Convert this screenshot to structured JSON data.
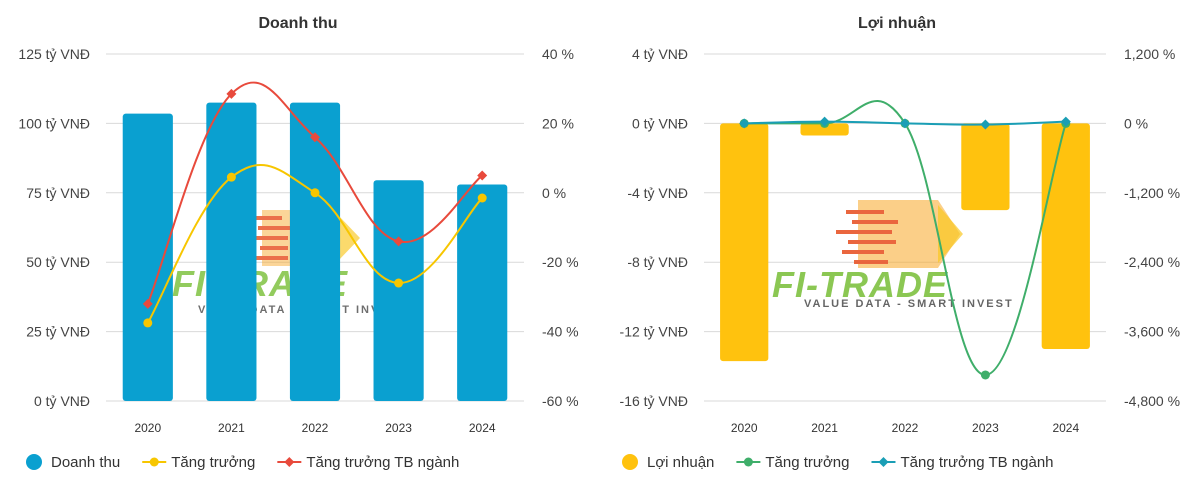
{
  "chart_data": [
    {
      "type": "bar+line",
      "title": "Doanh thu",
      "categories": [
        "2020",
        "2021",
        "2022",
        "2023",
        "2024"
      ],
      "left_axis": {
        "ylim": [
          0,
          125
        ],
        "ticks": [
          0,
          25,
          50,
          75,
          100,
          125
        ],
        "tick_labels": [
          "0 tỷ VNĐ",
          "25 tỷ VNĐ",
          "50 tỷ VNĐ",
          "75 tỷ VNĐ",
          "100 tỷ VNĐ",
          "125 tỷ VNĐ"
        ]
      },
      "right_axis": {
        "ylim": [
          -60,
          40
        ],
        "ticks": [
          -60,
          -40,
          -20,
          0,
          20,
          40
        ],
        "tick_labels": [
          "-60 %",
          "-40 %",
          "-20 %",
          "0 %",
          "20 %",
          "40 %"
        ]
      },
      "series": [
        {
          "name": "Doanh thu",
          "kind": "bar",
          "axis": "left",
          "color": "#0aa0d0",
          "values": [
            103.5,
            107.5,
            107.5,
            79.5,
            78
          ]
        },
        {
          "name": "Tăng trưởng",
          "kind": "line",
          "axis": "right",
          "color": "#f7c600",
          "marker": "circle",
          "values": [
            -37.5,
            4.5,
            0,
            -26,
            -1.5
          ]
        },
        {
          "name": "Tăng trưởng TB ngành",
          "kind": "line",
          "axis": "right",
          "color": "#e84a3c",
          "marker": "diamond",
          "values": [
            -32,
            28.5,
            16,
            -14,
            5
          ]
        }
      ]
    },
    {
      "type": "bar+line",
      "title": "Lợi nhuận",
      "categories": [
        "2020",
        "2021",
        "2022",
        "2023",
        "2024"
      ],
      "left_axis": {
        "ylim": [
          -16,
          4
        ],
        "ticks": [
          -16,
          -12,
          -8,
          -4,
          0,
          4
        ],
        "tick_labels": [
          "-16 tỷ VNĐ",
          "-12 tỷ VNĐ",
          "-8 tỷ VNĐ",
          "-4 tỷ VNĐ",
          "0 tỷ VNĐ",
          "4 tỷ VNĐ"
        ]
      },
      "right_axis": {
        "ylim": [
          -4800,
          1200
        ],
        "ticks": [
          -4800,
          -3600,
          -2400,
          -1200,
          0,
          1200
        ],
        "tick_labels": [
          "-4,800 %",
          "-3,600 %",
          "-2,400 %",
          "-1,200 %",
          "0 %",
          "1,200 %"
        ]
      },
      "series": [
        {
          "name": "Lợi nhuận",
          "kind": "bar",
          "axis": "left",
          "color": "#ffc20e",
          "values": [
            -13.7,
            -0.7,
            0,
            -5,
            -13
          ]
        },
        {
          "name": "Tăng trưởng",
          "kind": "line",
          "axis": "right",
          "color": "#3fae6a",
          "marker": "circle",
          "values": [
            0,
            0,
            0,
            -4350,
            0
          ]
        },
        {
          "name": "Tăng trưởng TB ngành",
          "kind": "line",
          "axis": "right",
          "color": "#1a9eb5",
          "marker": "diamond",
          "values": [
            0,
            30,
            0,
            -20,
            30
          ]
        }
      ]
    }
  ],
  "watermark": {
    "brand": "FI-TRADE",
    "tagline": "VALUE DATA - SMART INVEST"
  }
}
